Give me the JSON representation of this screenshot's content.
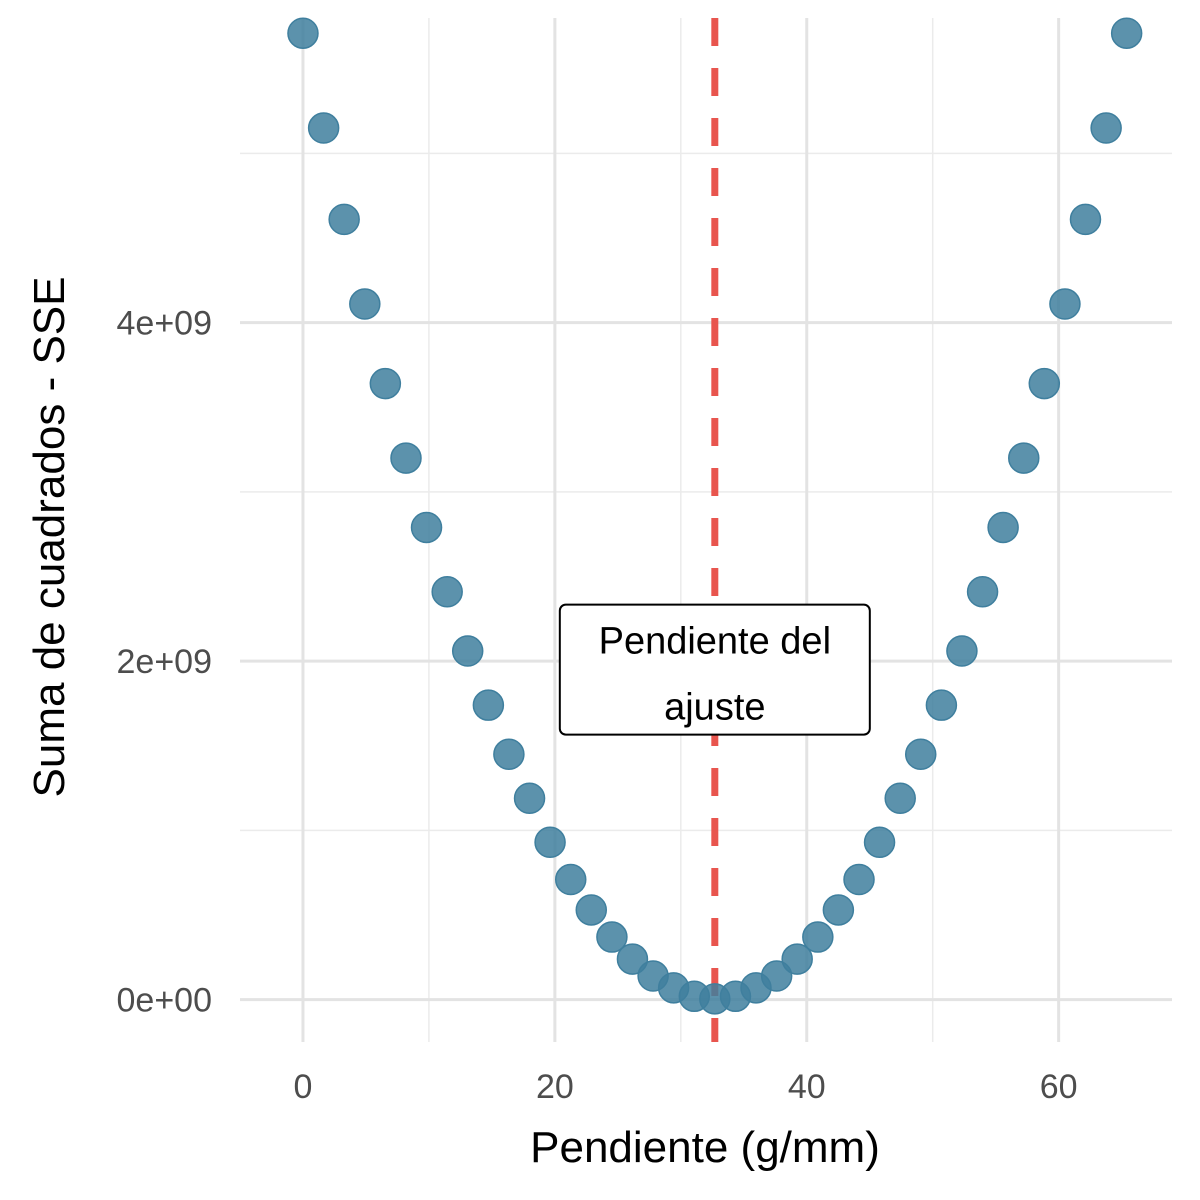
{
  "chart_data": {
    "type": "scatter",
    "title": "",
    "xlabel": "Pendiente (g/mm)",
    "ylabel": "Suma de cuadrados - SSE",
    "xlim": [
      -5,
      69
    ],
    "ylim": [
      -250000000,
      5800000000
    ],
    "x_ticks": [
      0,
      20,
      40,
      60
    ],
    "x_tick_labels": [
      "0",
      "20",
      "40",
      "60"
    ],
    "y_ticks": [
      0,
      2000000000,
      4000000000
    ],
    "y_tick_labels": [
      "0e+00",
      "2e+09",
      "4e+09"
    ],
    "x_minor_ticks": [
      10,
      30,
      50
    ],
    "y_minor_ticks": [
      1000000000,
      3000000000,
      5000000000
    ],
    "grid": true,
    "legend": "none",
    "point_color": "#3f7f9e",
    "vline": {
      "x": 32.7,
      "color": "#e8554e",
      "style": "dashed"
    },
    "annotation": {
      "lines": [
        "Pendiente del",
        "ajuste"
      ],
      "x": 32.7,
      "y": 1950000000
    },
    "series": [
      {
        "x": [
          0.0,
          1.64,
          3.27,
          4.91,
          6.54,
          8.18,
          9.81,
          11.45,
          13.08,
          14.72,
          16.35,
          17.99,
          19.62,
          21.26,
          22.89,
          24.53,
          26.16,
          27.8,
          29.43,
          31.07,
          32.7,
          34.34,
          35.97,
          37.61,
          39.24,
          40.88,
          42.51,
          44.15,
          45.78,
          47.42,
          49.05,
          50.69,
          52.32,
          53.96,
          55.59,
          57.23,
          58.86,
          60.5,
          62.13,
          63.77,
          65.4
        ],
        "y": [
          5710000000,
          5150000000,
          4610000000,
          4110000000,
          3640000000,
          3200000000,
          2790000000,
          2410000000,
          2060000000,
          1740000000,
          1450000000,
          1190000000,
          930000000,
          710000000,
          530000000,
          370000000,
          240000000,
          140000000,
          70000000,
          20000000,
          5000000,
          20000000,
          70000000,
          140000000,
          240000000,
          370000000,
          530000000,
          710000000,
          930000000,
          1190000000,
          1450000000,
          1740000000,
          2060000000,
          2410000000,
          2790000000,
          3200000000,
          3640000000,
          4110000000,
          4610000000,
          5150000000,
          5710000000
        ]
      }
    ]
  }
}
